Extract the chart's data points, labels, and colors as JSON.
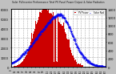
{
  "title": "Solar PV/Inverter Performance Total PV Panel Power Output & Solar Radiation",
  "bg_color": "#c0c0c0",
  "plot_bg": "#ffffff",
  "grid_color": "#aaaaaa",
  "bar_color": "#cc0000",
  "line_color": "#0000ee",
  "ylim_left": [
    0,
    6000
  ],
  "ylim_right": [
    0,
    1400
  ],
  "yticks_left": [
    0,
    1000,
    2000,
    3000,
    4000,
    5000,
    6000
  ],
  "yticks_right": [
    0,
    200,
    400,
    600,
    800,
    1000,
    1200,
    1400
  ],
  "n_points": 288,
  "legend_pv": "PV Power",
  "legend_solar": "Solar Rad"
}
